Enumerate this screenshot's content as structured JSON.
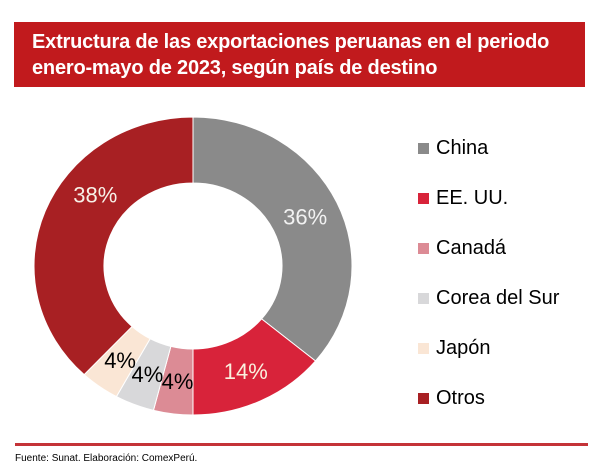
{
  "header": {
    "title_line1": "Extructura de las exportaciones peruanas en el periodo",
    "title_line2": "enero-mayo de 2023, según país de destino",
    "bg_color": "#C11A1D",
    "text_color": "#FFFFFF"
  },
  "chart_data": {
    "type": "pie",
    "subtype": "donut",
    "title": "Extructura de las exportaciones peruanas en el periodo enero-mayo de 2023, según país de destino",
    "unit": "percent",
    "direction": "clockwise",
    "start_angle_deg": 0,
    "inner_radius_ratio": 0.56,
    "legend_position": "right",
    "slices": [
      {
        "label": "China",
        "value": 36,
        "color": "#8A8A8A",
        "data_label": "36%",
        "data_label_color": "#F2F2F2"
      },
      {
        "label": "EE. UU.",
        "value": 14,
        "color": "#D8233A",
        "data_label": "14%",
        "data_label_color": "#FAF0DE"
      },
      {
        "label": "Canadá",
        "value": 4,
        "color": "#DC8B95",
        "data_label": "4%",
        "data_label_color": "#000000"
      },
      {
        "label": "Corea del Sur",
        "value": 4,
        "color": "#D8D8DA",
        "data_label": "4%",
        "data_label_color": "#000000"
      },
      {
        "label": "Japón",
        "value": 4,
        "color": "#FAE6D5",
        "data_label": "4%",
        "data_label_color": "#000000"
      },
      {
        "label": "Otros",
        "value": 38,
        "color": "#A82023",
        "data_label": "38%",
        "data_label_color": "#F7F1E8",
        "label_angle_deg": 308
      }
    ]
  },
  "footer": {
    "rule_color": "#C43338",
    "source_text": "Fuente: Sunat. Elaboración: ComexPerú."
  }
}
